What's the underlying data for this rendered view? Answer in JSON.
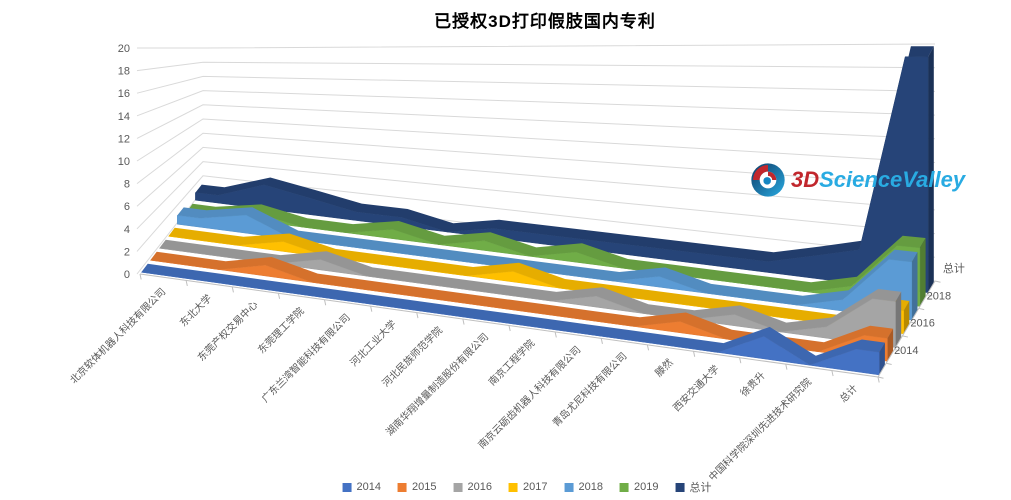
{
  "logo": {
    "prefix": "3D",
    "name": "ScienceValley",
    "prefix_color": "#C1272D",
    "name_color": "#29ABE2"
  },
  "chart_data": {
    "type": "area",
    "subtype": "3d-area",
    "title": "已授权3D打印假肢国内专利",
    "ylim": [
      0,
      20
    ],
    "ytick_step": 2,
    "grid": true,
    "legend_position": "bottom",
    "depth_axis_labels": [
      "2014",
      "2016",
      "2018",
      "总计"
    ],
    "categories": [
      "北京软体机器人科技有限公司",
      "东北大学",
      "东莞产权交易中心",
      "东莞理工学院",
      "广东兰湾智能科技有限公司",
      "河北工业大学",
      "河北民族师范学院",
      "湖南华翔增量制造股份有限公司",
      "南京工程学院",
      "南京云砺齿机器人科技有限公司",
      "青岛尤尼科技有限公司",
      "滕然",
      "西安交通大学",
      "徐贵升",
      "中国科学院深圳先进技术研究院",
      "总计"
    ],
    "series": [
      {
        "name": "2014",
        "color": "#4472C4",
        "values": [
          0,
          0,
          0,
          0,
          0,
          0,
          0,
          0,
          0,
          0,
          0,
          0,
          0,
          2,
          0,
          2
        ]
      },
      {
        "name": "2015",
        "color": "#ED7D31",
        "values": [
          0,
          0,
          1,
          0,
          0,
          0,
          0,
          0,
          0,
          0,
          0,
          1,
          0,
          0,
          0,
          2
        ]
      },
      {
        "name": "2016",
        "color": "#A5A5A5",
        "values": [
          0,
          0,
          0,
          1,
          0,
          0,
          0,
          0,
          0,
          1,
          0,
          0,
          1,
          0,
          1,
          4
        ]
      },
      {
        "name": "2017",
        "color": "#FFC000",
        "values": [
          0,
          0,
          1,
          0,
          0,
          0,
          0,
          1,
          0,
          0,
          0,
          0,
          0,
          0,
          0,
          2
        ]
      },
      {
        "name": "2018",
        "color": "#5B9BD5",
        "values": [
          1,
          2,
          0,
          0,
          0,
          0,
          0,
          0,
          0,
          0,
          1,
          0,
          0,
          0,
          1,
          5
        ]
      },
      {
        "name": "2019",
        "color": "#70AD47",
        "values": [
          0,
          1,
          0,
          0,
          1,
          0,
          1,
          0,
          1,
          0,
          0,
          0,
          0,
          0,
          1,
          5
        ]
      },
      {
        "name": "总计",
        "color": "#264478",
        "values": [
          1,
          3,
          2,
          1,
          1,
          0,
          1,
          1,
          1,
          1,
          1,
          1,
          1,
          2,
          3,
          20
        ]
      }
    ]
  }
}
